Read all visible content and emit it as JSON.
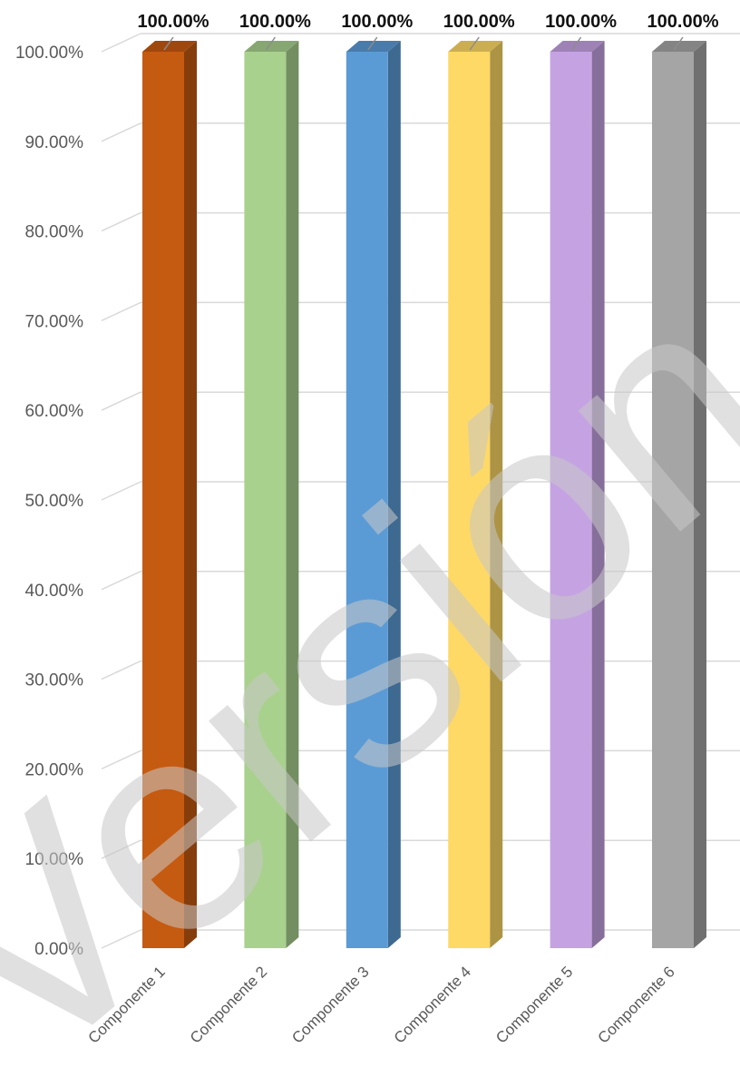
{
  "chart_data": {
    "type": "bar",
    "categories": [
      "Componente 1",
      "Componente 2",
      "Componente 3",
      "Componente 4",
      "Componente 5",
      "Componente 6"
    ],
    "values": [
      100,
      100,
      100,
      100,
      100,
      100
    ],
    "data_labels": [
      "100.00%",
      "100.00%",
      "100.00%",
      "100.00%",
      "100.00%",
      "100.00%"
    ],
    "y_ticks": [
      "0.00%",
      "10.00%",
      "20.00%",
      "30.00%",
      "40.00%",
      "50.00%",
      "60.00%",
      "70.00%",
      "80.00%",
      "90.00%",
      "100.00%"
    ],
    "ylim": [
      0,
      100
    ],
    "grid": true,
    "style": "3d-column",
    "colors": [
      "#c55a11",
      "#a9d18e",
      "#5b9bd5",
      "#ffd966",
      "#c5a3e3",
      "#a5a5a5"
    ],
    "title": "",
    "xlabel": "",
    "ylabel": ""
  },
  "watermark": {
    "text": "Versión Pública",
    "color": "#c8c8c8"
  }
}
